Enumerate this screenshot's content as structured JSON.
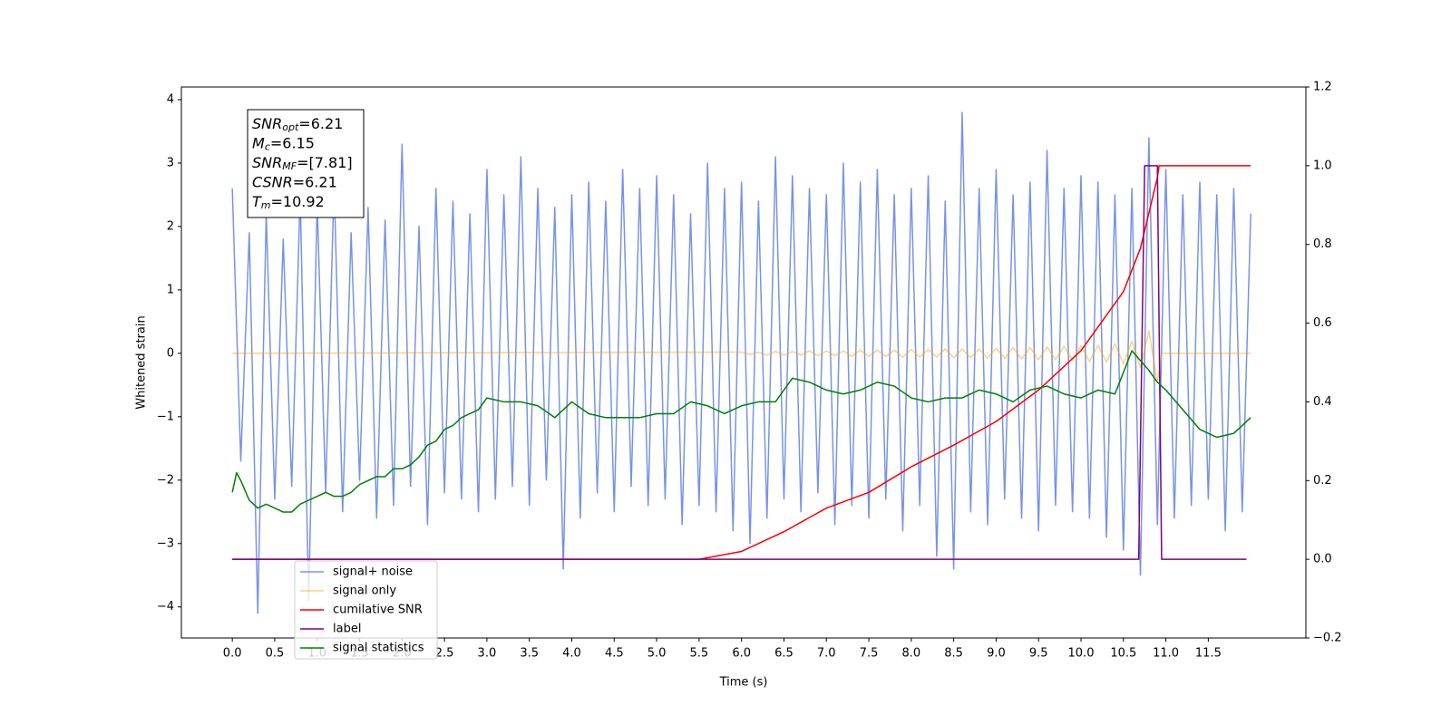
{
  "chart_data": {
    "type": "line",
    "xlabel": "Time (s)",
    "ylabel": "Whitened strain",
    "xlim": [
      -0.6,
      12.65
    ],
    "ylim": [
      -4.49,
      4.2
    ],
    "y2lim": [
      -0.2,
      1.2
    ],
    "xticks": [
      {
        "value": 0,
        "label": "0.0"
      },
      0.5,
      {
        "value": 1,
        "label": "1.0"
      },
      1.5,
      {
        "value": 2,
        "label": "2.0"
      },
      2.5,
      {
        "value": 3,
        "label": "3.0"
      },
      3.5,
      {
        "value": 4,
        "label": "4.0"
      },
      4.5,
      {
        "value": 5,
        "label": "5.0"
      },
      5.5,
      {
        "value": 6,
        "label": "6.0"
      },
      6.5,
      {
        "value": 7,
        "label": "7.0"
      },
      7.5,
      {
        "value": 8,
        "label": "8.0"
      },
      8.5,
      {
        "value": 9,
        "label": "9.0"
      },
      9.5,
      {
        "value": 10,
        "label": "10.0"
      },
      10.5,
      {
        "value": 11,
        "label": "11.0"
      },
      11.5
    ],
    "yticks": [
      {
        "value": -4,
        "label": "−4"
      },
      {
        "value": -3,
        "label": "−3"
      },
      {
        "value": -2,
        "label": "−2"
      },
      {
        "value": -1,
        "label": "−1"
      },
      0,
      1,
      2,
      3,
      4
    ],
    "y2ticks": [
      {
        "value": -0.2,
        "label": "−0.2"
      },
      {
        "value": 0,
        "label": "0.0"
      },
      0.2,
      0.4,
      0.6,
      0.8,
      {
        "value": 1,
        "label": "1.0"
      },
      1.2
    ],
    "annotation": [
      {
        "symbol": "SNR",
        "subscript": "opt",
        "value": "=6.21"
      },
      {
        "symbol": "M",
        "subscript": "c",
        "value": "=6.15"
      },
      {
        "symbol": "SNR",
        "subscript": "MF",
        "value": "=[7.81]"
      },
      {
        "symbol": "CSNR",
        "value": "=6.21"
      },
      {
        "symbol": "T",
        "subscript": "m",
        "value": "=10.92"
      }
    ],
    "legend": "lower left",
    "series": [
      {
        "name": "signal+ noise",
        "color": "#7893e6",
        "x": [
          0,
          0.1,
          0.2,
          0.3,
          0.4,
          0.5,
          0.6,
          0.7,
          0.8,
          0.9,
          1,
          1.1,
          1.2,
          1.3,
          1.4,
          1.5,
          1.6,
          1.7,
          1.8,
          1.9,
          2,
          2.1,
          2.2,
          2.3,
          2.4,
          2.5,
          2.6,
          2.7,
          2.8,
          2.9,
          3,
          3.1,
          3.2,
          3.3,
          3.4,
          3.5,
          3.6,
          3.7,
          3.8,
          3.9,
          4,
          4.1,
          4.2,
          4.3,
          4.4,
          4.5,
          4.6,
          4.7,
          4.8,
          4.9,
          5,
          5.1,
          5.2,
          5.3,
          5.4,
          5.5,
          5.6,
          5.7,
          5.8,
          5.9,
          6,
          6.1,
          6.2,
          6.3,
          6.4,
          6.5,
          6.6,
          6.7,
          6.8,
          6.9,
          7,
          7.1,
          7.2,
          7.3,
          7.4,
          7.5,
          7.6,
          7.7,
          7.8,
          7.9,
          8,
          8.1,
          8.2,
          8.3,
          8.4,
          8.5,
          8.6,
          8.7,
          8.8,
          8.9,
          9,
          9.1,
          9.2,
          9.3,
          9.4,
          9.5,
          9.6,
          9.7,
          9.8,
          9.9,
          10,
          10.1,
          10.2,
          10.3,
          10.4,
          10.5,
          10.6,
          10.7,
          10.8,
          10.9,
          11,
          11.1,
          11.2,
          11.3,
          11.4,
          11.5,
          11.6,
          11.7,
          11.8,
          11.9,
          12
        ],
        "values": [
          2.6,
          -1.7,
          1.9,
          -4.1,
          2.2,
          -2.3,
          1.8,
          -2.1,
          2.5,
          -3.9,
          2.4,
          -2.2,
          2.7,
          -2.5,
          1.9,
          -2.0,
          2.3,
          -2.6,
          2.1,
          -2.4,
          3.3,
          -2.1,
          2.0,
          -2.7,
          2.6,
          -2.2,
          2.4,
          -2.3,
          2.2,
          -2.5,
          2.9,
          -2.3,
          2.5,
          -2.1,
          3.1,
          -2.4,
          2.6,
          -2.0,
          2.3,
          -3.4,
          2.5,
          -2.6,
          2.7,
          -2.2,
          2.4,
          -2.5,
          2.9,
          -2.1,
          2.6,
          -2.4,
          2.8,
          -2.3,
          2.5,
          -2.7,
          2.2,
          -2.4,
          3.0,
          -2.5,
          2.6,
          -2.8,
          2.7,
          -3.0,
          2.4,
          -2.6,
          3.1,
          -2.3,
          2.8,
          -2.5,
          2.6,
          -2.2,
          2.5,
          -2.7,
          3.0,
          -2.4,
          2.7,
          -2.6,
          2.9,
          -2.3,
          2.5,
          -2.8,
          2.6,
          -2.4,
          2.8,
          -3.2,
          2.4,
          -3.4,
          3.8,
          -2.5,
          2.6,
          -2.7,
          2.9,
          -2.3,
          2.5,
          -2.6,
          2.7,
          -2.8,
          3.2,
          -2.4,
          2.6,
          -2.5,
          2.8,
          -2.6,
          2.7,
          -2.9,
          2.5,
          -3.1,
          2.6,
          -3.5,
          3.4,
          -2.7,
          2.9,
          -2.6,
          2.5,
          -2.4,
          2.7,
          -2.3,
          2.5,
          -2.8,
          2.6,
          -2.5,
          2.2
        ]
      },
      {
        "name": "signal only",
        "color": "#ffa500",
        "x": [
          0,
          6,
          6.1,
          6.2,
          6.3,
          6.4,
          6.5,
          6.6,
          6.7,
          6.8,
          6.9,
          7,
          7.1,
          7.2,
          7.3,
          7.4,
          7.5,
          7.6,
          7.7,
          7.8,
          7.9,
          8,
          8.1,
          8.2,
          8.3,
          8.4,
          8.5,
          8.6,
          8.7,
          8.8,
          8.9,
          9,
          9.1,
          9.2,
          9.3,
          9.4,
          9.5,
          9.6,
          9.7,
          9.8,
          9.9,
          10,
          10.1,
          10.2,
          10.3,
          10.4,
          10.5,
          10.6,
          10.7,
          10.8,
          10.9,
          10.95,
          12
        ],
        "values": [
          0,
          0.02,
          -0.02,
          0.02,
          -0.03,
          0.03,
          -0.03,
          0.03,
          -0.03,
          0.04,
          -0.04,
          0.04,
          -0.04,
          0.04,
          -0.05,
          0.05,
          -0.05,
          0.05,
          -0.05,
          0.05,
          -0.06,
          0.06,
          -0.06,
          0.06,
          -0.06,
          0.07,
          -0.07,
          0.07,
          -0.07,
          0.07,
          -0.08,
          0.08,
          -0.08,
          0.09,
          -0.09,
          0.09,
          -0.1,
          0.1,
          -0.1,
          0.11,
          -0.11,
          0.12,
          -0.13,
          0.13,
          -0.14,
          0.15,
          -0.17,
          0.19,
          -0.22,
          0.35,
          -0.45,
          0,
          0
        ]
      },
      {
        "name": "cumilative SNR",
        "color": "#ff0000",
        "axis": "y2",
        "x": [
          0,
          5.5,
          6,
          6.5,
          7,
          7.5,
          8,
          8.5,
          9,
          9.5,
          10,
          10.5,
          10.7,
          10.9,
          10.92,
          12
        ],
        "values": [
          0,
          0,
          0.02,
          0.07,
          0.13,
          0.17,
          0.235,
          0.29,
          0.35,
          0.43,
          0.53,
          0.68,
          0.79,
          0.97,
          1,
          1
        ]
      },
      {
        "name": "label",
        "color": "#800080",
        "axis": "y2",
        "x": [
          0,
          10.68,
          10.75,
          10.9,
          10.95,
          11.95
        ],
        "values": [
          0,
          0,
          1,
          1,
          0,
          0
        ]
      },
      {
        "name": "signal statistics",
        "color": "#008000",
        "axis": "y2",
        "x": [
          0,
          0.05,
          0.1,
          0.2,
          0.3,
          0.4,
          0.5,
          0.6,
          0.7,
          0.8,
          0.9,
          1,
          1.1,
          1.2,
          1.3,
          1.4,
          1.5,
          1.6,
          1.7,
          1.8,
          1.9,
          2,
          2.1,
          2.2,
          2.3,
          2.4,
          2.5,
          2.6,
          2.7,
          2.8,
          2.9,
          3,
          3.2,
          3.4,
          3.6,
          3.8,
          4,
          4.2,
          4.4,
          4.6,
          4.8,
          5,
          5.2,
          5.4,
          5.6,
          5.8,
          6,
          6.2,
          6.4,
          6.6,
          6.8,
          7,
          7.2,
          7.4,
          7.6,
          7.8,
          8,
          8.2,
          8.4,
          8.6,
          8.8,
          9,
          9.2,
          9.4,
          9.6,
          9.8,
          10,
          10.2,
          10.4,
          10.6,
          10.8,
          10.9,
          11,
          11.2,
          11.4,
          11.6,
          11.8,
          12
        ],
        "values": [
          0.17,
          0.22,
          0.2,
          0.15,
          0.13,
          0.14,
          0.13,
          0.12,
          0.12,
          0.14,
          0.15,
          0.16,
          0.17,
          0.16,
          0.16,
          0.17,
          0.19,
          0.2,
          0.21,
          0.21,
          0.23,
          0.23,
          0.24,
          0.26,
          0.29,
          0.3,
          0.33,
          0.34,
          0.36,
          0.37,
          0.38,
          0.41,
          0.4,
          0.4,
          0.39,
          0.36,
          0.4,
          0.37,
          0.36,
          0.36,
          0.36,
          0.37,
          0.37,
          0.4,
          0.39,
          0.37,
          0.39,
          0.4,
          0.4,
          0.46,
          0.45,
          0.43,
          0.42,
          0.43,
          0.45,
          0.44,
          0.41,
          0.4,
          0.41,
          0.41,
          0.43,
          0.42,
          0.4,
          0.43,
          0.44,
          0.42,
          0.41,
          0.43,
          0.42,
          0.53,
          0.48,
          0.45,
          0.43,
          0.38,
          0.33,
          0.31,
          0.32,
          0.36
        ]
      }
    ]
  }
}
